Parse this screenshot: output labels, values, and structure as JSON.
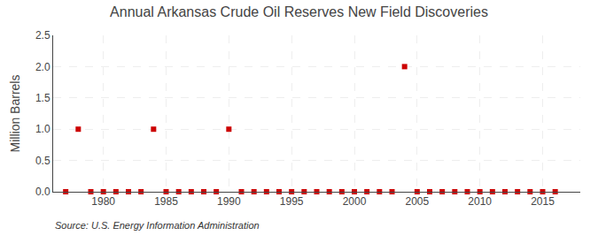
{
  "chart_data": {
    "type": "scatter",
    "title": "Annual Arkansas Crude Oil Reserves New Field Discoveries",
    "y_label": "Million Barrels",
    "annotations": [
      "Source: U.S. Energy Information Administration"
    ],
    "x": [
      1977,
      1978,
      1979,
      1980,
      1981,
      1982,
      1983,
      1984,
      1985,
      1986,
      1987,
      1988,
      1989,
      1990,
      1991,
      1992,
      1993,
      1994,
      1995,
      1996,
      1997,
      1998,
      1999,
      2000,
      2001,
      2002,
      2003,
      2004,
      2005,
      2006,
      2007,
      2008,
      2009,
      2010,
      2011,
      2012,
      2013,
      2014,
      2015,
      2016
    ],
    "values": [
      0.0,
      1.0,
      0.0,
      0.0,
      0.0,
      0.0,
      0.0,
      1.0,
      0.0,
      0.0,
      0.0,
      0.0,
      0.0,
      1.0,
      0.0,
      0.0,
      0.0,
      0.0,
      0.0,
      0.0,
      0.0,
      0.0,
      0.0,
      0.0,
      0.0,
      0.0,
      0.0,
      2.0,
      0.0,
      0.0,
      0.0,
      0.0,
      0.0,
      0.0,
      0.0,
      0.0,
      0.0,
      0.0,
      0.0,
      0.0
    ],
    "color": "#cc0000",
    "marker": "square",
    "xlim": [
      1976,
      2018
    ],
    "xticks": [
      1980,
      1985,
      1990,
      1995,
      2000,
      2005,
      2010,
      2015
    ],
    "ylim": [
      0.0,
      2.5
    ],
    "yticks": [
      {
        "value": 0.0,
        "label": "0.0"
      },
      0.5,
      {
        "value": 1.0,
        "label": "1.0"
      },
      1.5,
      {
        "value": 2.0,
        "label": "2.0"
      },
      2.5
    ],
    "grid": true
  }
}
